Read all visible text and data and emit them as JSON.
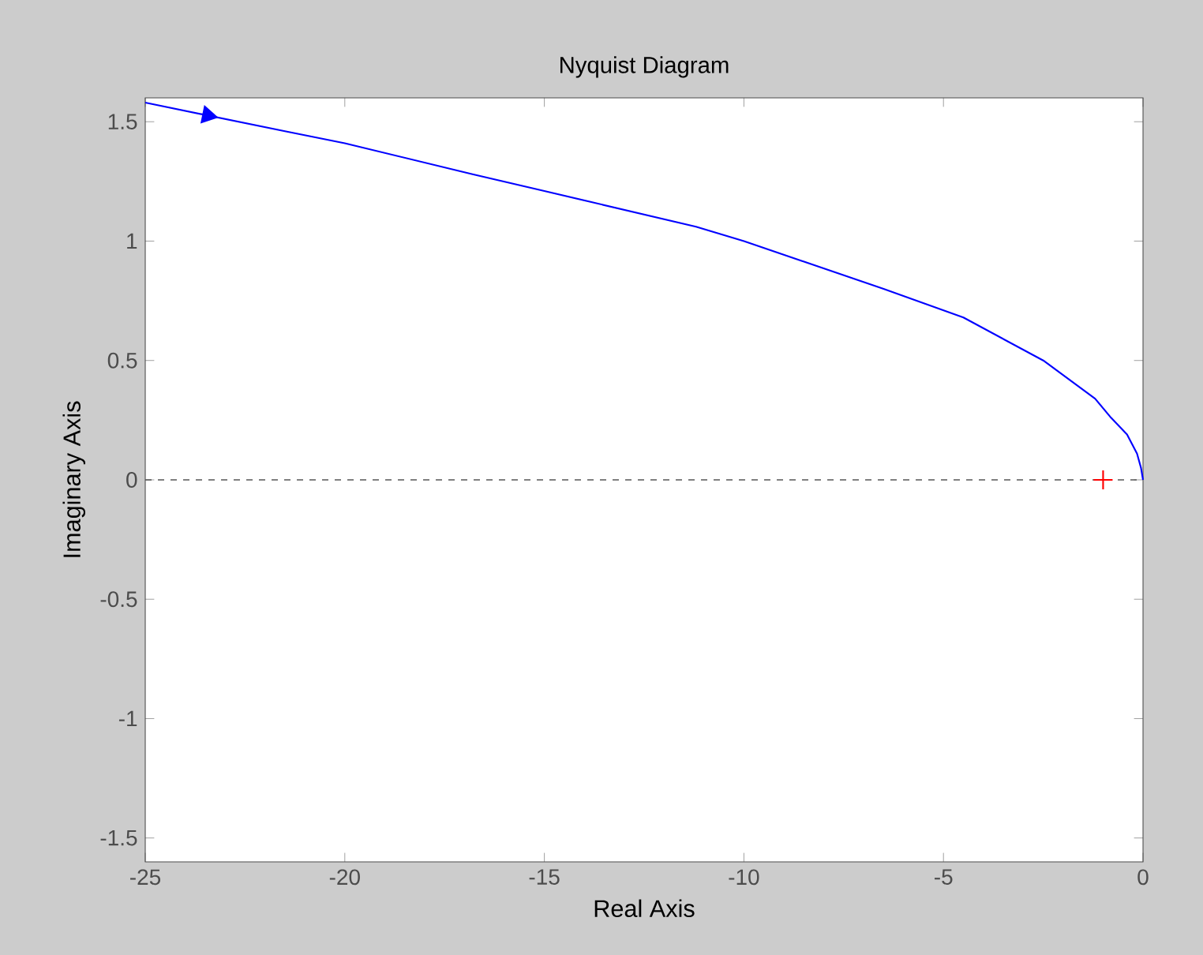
{
  "chart_data": {
    "type": "line",
    "title": "Nyquist Diagram",
    "xlabel": "Real Axis",
    "ylabel": "Imaginary Axis",
    "xlim": [
      -25,
      0
    ],
    "ylim": [
      -1.6,
      1.6
    ],
    "xticks": [
      -25,
      -20,
      -15,
      -10,
      -5,
      0
    ],
    "yticks": [
      -1.5,
      -1,
      -0.5,
      0,
      0.5,
      1,
      1.5
    ],
    "marker": "none",
    "line_style": "solid",
    "series": [
      {
        "color": "#0000ff",
        "x": [
          -25,
          -21.5,
          -20,
          -16.8,
          -15,
          -11.2,
          -10,
          -6.5,
          -4.5,
          -2.5,
          -1.2,
          -0.8,
          -0.4,
          -0.15,
          -0.05,
          0
        ],
        "values": [
          1.58,
          1.46,
          1.41,
          1.28,
          1.21,
          1.06,
          1.0,
          0.8,
          0.68,
          0.5,
          0.34,
          0.26,
          0.19,
          0.11,
          0.05,
          0
        ]
      },
      {
        "type": "scatter",
        "marker": "cross",
        "color": "#ff0000",
        "x": [
          -1
        ],
        "values": [
          0
        ]
      }
    ],
    "ref_lines": [
      {
        "axis": "y",
        "value": 0,
        "color": "#555555",
        "line_style": "dashed"
      }
    ]
  }
}
